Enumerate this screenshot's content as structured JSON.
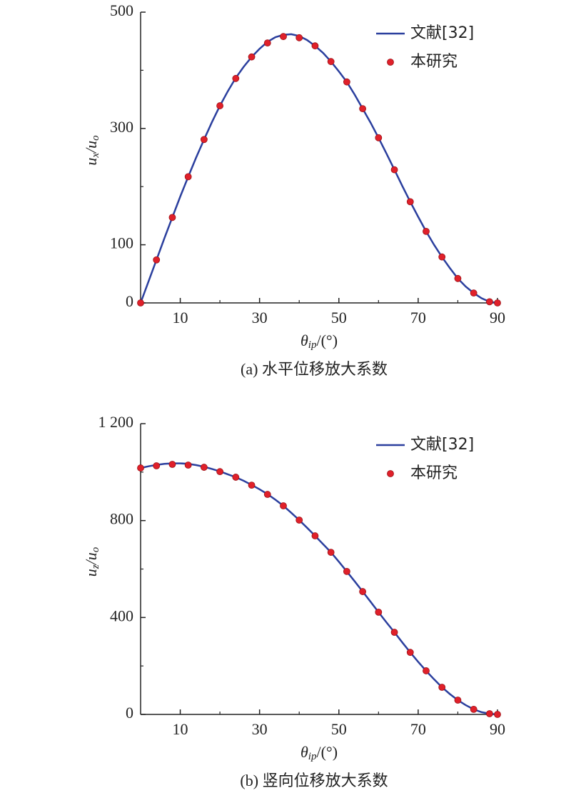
{
  "chart_data": [
    {
      "type": "line",
      "x_label": [
        "θ",
        "ip",
        "/(°)"
      ],
      "y_label": [
        "u",
        "x",
        "/u",
        "o"
      ],
      "caption": "(a) 水平位移放大系数",
      "xlim": [
        0,
        90
      ],
      "xticks": [
        10,
        30,
        50,
        70,
        90
      ],
      "xminorticks": [
        20,
        40,
        60,
        80
      ],
      "ylim": [
        0,
        500
      ],
      "yticks": [
        0,
        100,
        300,
        500
      ],
      "yminorticks": [
        200,
        400
      ],
      "legend": "upper right",
      "series": [
        {
          "name": "文献[32]",
          "color": "#2b3f9e",
          "style": "line",
          "x": [
            0,
            2,
            4,
            6,
            8,
            10,
            12,
            14,
            16,
            18,
            20,
            22,
            24,
            26,
            28,
            30,
            32,
            34,
            36,
            38,
            40,
            42,
            44,
            46,
            48,
            50,
            52,
            54,
            56,
            58,
            60,
            62,
            64,
            66,
            68,
            70,
            72,
            74,
            76,
            78,
            80,
            82,
            84,
            86,
            88,
            90
          ],
          "values": [
            0,
            37,
            74,
            111,
            147,
            183,
            217,
            250,
            281,
            311,
            339,
            364,
            387,
            406,
            423,
            437,
            449,
            457,
            461,
            462,
            459,
            452,
            442,
            430,
            415,
            398,
            380,
            358,
            334,
            310,
            284,
            257,
            229,
            201,
            174,
            148,
            123,
            100,
            79,
            60,
            42,
            28,
            17,
            8,
            2,
            0
          ]
        },
        {
          "name": "本研究",
          "color": "#e0202a",
          "style": "markers",
          "x": [
            0,
            4,
            8,
            12,
            16,
            20,
            24,
            28,
            32,
            36,
            40,
            44,
            48,
            52,
            56,
            60,
            64,
            68,
            72,
            76,
            80,
            84,
            88,
            90
          ],
          "values": [
            0,
            74,
            147,
            217,
            281,
            339,
            386,
            423,
            447,
            458,
            456,
            442,
            415,
            380,
            334,
            284,
            229,
            174,
            123,
            79,
            42,
            17,
            2,
            0
          ]
        }
      ]
    },
    {
      "type": "line",
      "x_label": [
        "θ",
        "ip",
        "/(°)"
      ],
      "y_label": [
        "u",
        "z",
        "/u",
        "o"
      ],
      "caption": "(b) 竖向位移放大系数",
      "xlim": [
        0,
        90
      ],
      "xticks": [
        10,
        30,
        50,
        70,
        90
      ],
      "xminorticks": [
        20,
        40,
        60,
        80
      ],
      "ylim": [
        0,
        1200
      ],
      "yticks": [
        0,
        400,
        800,
        {
          "value": 1200,
          "label": "1 200"
        }
      ],
      "yminorticks": [
        200,
        600,
        1000
      ],
      "legend": "upper right",
      "series": [
        {
          "name": "文献[32]",
          "color": "#2b3f9e",
          "style": "line",
          "x": [
            0,
            2,
            4,
            6,
            8,
            10,
            12,
            14,
            16,
            18,
            20,
            22,
            24,
            26,
            28,
            30,
            32,
            34,
            36,
            38,
            40,
            42,
            44,
            46,
            48,
            50,
            52,
            54,
            56,
            58,
            60,
            62,
            64,
            66,
            68,
            70,
            72,
            74,
            76,
            78,
            80,
            82,
            84,
            86,
            88,
            90
          ],
          "values": [
            1017,
            1024,
            1030,
            1034,
            1036,
            1036,
            1034,
            1029,
            1022,
            1013,
            1003,
            991,
            979,
            964,
            947,
            929,
            909,
            886,
            861,
            832,
            802,
            770,
            737,
            703,
            669,
            630,
            590,
            549,
            507,
            465,
            422,
            380,
            339,
            297,
            256,
            217,
            180,
            145,
            112,
            84,
            59,
            38,
            21,
            9,
            3,
            0
          ]
        },
        {
          "name": "本研究",
          "color": "#e0202a",
          "style": "markers",
          "x": [
            0,
            4,
            8,
            12,
            16,
            20,
            24,
            28,
            32,
            36,
            40,
            44,
            48,
            52,
            56,
            60,
            64,
            68,
            72,
            76,
            80,
            84,
            88,
            90
          ],
          "values": [
            1017,
            1026,
            1032,
            1029,
            1020,
            1002,
            979,
            946,
            908,
            861,
            802,
            737,
            669,
            590,
            507,
            422,
            339,
            256,
            180,
            112,
            59,
            21,
            3,
            0
          ]
        }
      ]
    }
  ]
}
